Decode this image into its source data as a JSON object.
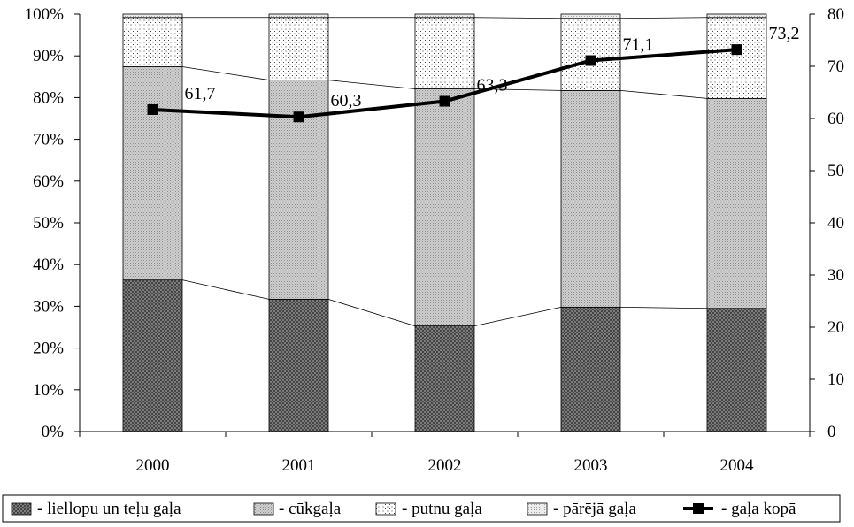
{
  "chart_data": {
    "type": "bar",
    "stacked": "percent",
    "categories": [
      "2000",
      "2001",
      "2002",
      "2003",
      "2004"
    ],
    "series": [
      {
        "name": "- liellopu un teļu gaļa",
        "values": [
          36.3,
          31.7,
          25.3,
          29.8,
          29.5
        ],
        "pattern": "crosshatch",
        "color": "#6e6e6e"
      },
      {
        "name": "- cūkgaļa",
        "values": [
          51.1,
          52.5,
          56.8,
          51.9,
          50.3
        ],
        "pattern": "dense-dots",
        "color": "#bdbdbd"
      },
      {
        "name": "- putnu gaļa",
        "values": [
          11.8,
          15.0,
          17.1,
          17.3,
          19.4
        ],
        "pattern": "sparse-dots",
        "color": "#f2f2f2"
      },
      {
        "name": "- pārējā gaļa",
        "values": [
          0.8,
          0.8,
          0.8,
          1.0,
          0.8
        ],
        "pattern": "light-dots",
        "color": "#e6e6e6"
      }
    ],
    "line_series": {
      "name": "- gaļa kopā",
      "values": [
        61.7,
        60.3,
        63.3,
        71.1,
        73.2
      ],
      "labels": [
        "61,7",
        "60,3",
        "63,3",
        "71,1",
        "73,2"
      ],
      "axis": "right"
    },
    "y_left": {
      "min": 0,
      "max": 100,
      "ticks": [
        "0%",
        "10%",
        "20%",
        "30%",
        "40%",
        "50%",
        "60%",
        "70%",
        "80%",
        "90%",
        "100%"
      ]
    },
    "y_right": {
      "min": 0,
      "max": 80,
      "ticks": [
        "0",
        "10",
        "20",
        "30",
        "40",
        "50",
        "60",
        "70",
        "80"
      ]
    },
    "legend_position": "bottom",
    "grid": false
  }
}
